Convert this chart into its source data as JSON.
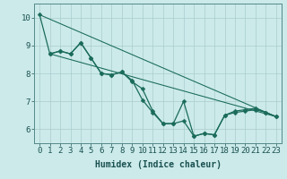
{
  "title": "",
  "xlabel": "Humidex (Indice chaleur)",
  "ylabel": "",
  "background_color": "#cceaea",
  "grid_color": "#aacccc",
  "line_color": "#1a6b5a",
  "xlim": [
    -0.5,
    23.5
  ],
  "ylim": [
    5.5,
    10.5
  ],
  "xticks": [
    0,
    1,
    2,
    3,
    4,
    5,
    6,
    7,
    8,
    9,
    10,
    11,
    12,
    13,
    14,
    15,
    16,
    17,
    18,
    19,
    20,
    21,
    22,
    23
  ],
  "yticks": [
    6,
    7,
    8,
    9,
    10
  ],
  "series1_x": [
    0,
    1,
    2,
    3,
    4,
    5,
    6,
    7,
    8,
    9,
    10,
    11,
    12,
    13,
    14,
    15,
    16,
    17,
    18,
    19,
    20,
    21,
    22,
    23
  ],
  "series1_y": [
    10.1,
    8.7,
    8.8,
    8.7,
    9.1,
    8.55,
    8.0,
    7.95,
    8.05,
    7.75,
    7.05,
    6.6,
    6.2,
    6.2,
    7.0,
    5.75,
    5.85,
    5.8,
    6.5,
    6.6,
    6.65,
    6.7,
    6.6,
    6.45
  ],
  "series2_x": [
    1,
    2,
    3,
    4,
    5,
    6,
    7,
    8,
    9,
    10,
    11,
    12,
    13,
    14,
    15,
    16,
    17,
    18,
    19,
    20,
    21,
    22,
    23
  ],
  "series2_y": [
    8.7,
    8.8,
    8.7,
    9.1,
    8.55,
    8.0,
    7.95,
    8.05,
    7.7,
    7.45,
    6.65,
    6.2,
    6.2,
    6.3,
    5.75,
    5.85,
    5.8,
    6.5,
    6.65,
    6.7,
    6.75,
    6.6,
    6.45
  ],
  "series3_x": [
    1,
    23
  ],
  "series3_y": [
    8.7,
    6.45
  ],
  "series4_x": [
    0,
    23
  ],
  "series4_y": [
    10.1,
    6.45
  ],
  "fontsize_xlabel": 7,
  "fontsize_tick": 6.5,
  "marker_size": 2.5,
  "linewidth": 0.9
}
